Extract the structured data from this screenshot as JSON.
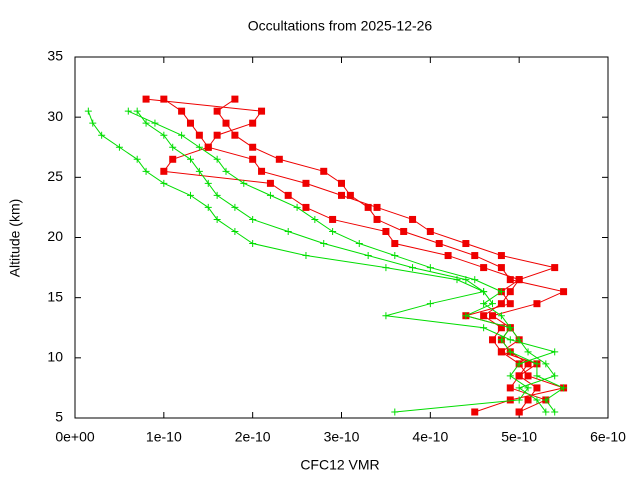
{
  "chart_data": {
    "type": "line",
    "title": "Occultations from 2025-12-26",
    "xlabel": "CFC12 VMR",
    "ylabel": "Altitude (km)",
    "xlim": [
      0,
      6e-10
    ],
    "ylim": [
      5,
      35
    ],
    "xticks": [
      {
        "value": 0,
        "label": "0e+00"
      },
      {
        "value": 1e-10,
        "label": "1e-10"
      },
      {
        "value": 2e-10,
        "label": "2e-10"
      },
      {
        "value": 3e-10,
        "label": "3e-10"
      },
      {
        "value": 4e-10,
        "label": "4e-10"
      },
      {
        "value": 5e-10,
        "label": "5e-10"
      },
      {
        "value": 6e-10,
        "label": "6e-10"
      }
    ],
    "yticks": [
      5,
      10,
      15,
      20,
      25,
      30,
      35
    ],
    "series": [
      {
        "color": "#ee0000",
        "marker": "square",
        "x": [
          5e-10,
          5.1e-10,
          5.2e-10,
          5e-10,
          5.1e-10,
          4.9e-10,
          4.8e-10,
          4.9e-10,
          4.7e-10,
          5.2e-10,
          5.5e-10,
          4.9e-10,
          4.8e-10,
          4.5e-10,
          4.1e-10,
          3.7e-10,
          3.4e-10,
          3.3e-10,
          3.1e-10,
          3e-10,
          2.8e-10,
          2.3e-10,
          2e-10,
          1.8e-10,
          1.7e-10,
          1.6e-10,
          1.8e-10
        ],
        "y": [
          5.5,
          6.5,
          7.5,
          8.5,
          9.5,
          10.5,
          11.5,
          12.5,
          13.5,
          14.5,
          15.5,
          16.5,
          17.5,
          18.5,
          19.5,
          20.5,
          21.5,
          22.5,
          23.5,
          24.5,
          25.5,
          26.5,
          27.5,
          28.5,
          29.5,
          30.5,
          31.5
        ]
      },
      {
        "color": "#ee0000",
        "marker": "square",
        "x": [
          4.5e-10,
          4.9e-10,
          5.5e-10,
          5.1e-10,
          5e-10,
          4.8e-10,
          4.7e-10,
          4.8e-10,
          4.6e-10,
          4.8e-10,
          4.9e-10,
          5e-10,
          5.4e-10,
          4.8e-10,
          4.4e-10,
          4e-10,
          3.8e-10,
          3.4e-10,
          3e-10,
          2.6e-10,
          2.1e-10,
          2e-10,
          1.5e-10,
          1.4e-10,
          1.3e-10,
          1.2e-10,
          1e-10
        ],
        "y": [
          5.5,
          6.5,
          7.5,
          8.5,
          9.5,
          10.5,
          11.5,
          12.5,
          13.5,
          14.5,
          15.5,
          16.5,
          17.5,
          18.5,
          19.5,
          20.5,
          21.5,
          22.5,
          23.5,
          24.5,
          25.5,
          26.5,
          27.5,
          28.5,
          29.5,
          30.5,
          31.5
        ]
      },
      {
        "color": "#ee0000",
        "marker": "square",
        "x": [
          5e-10,
          5.3e-10,
          4.9e-10,
          5e-10,
          5.2e-10,
          4.8e-10,
          5e-10,
          4.9e-10,
          4.4e-10,
          4.9e-10,
          4.8e-10,
          5e-10,
          4.6e-10,
          4.2e-10,
          3.6e-10,
          3.5e-10,
          2.9e-10,
          2.6e-10,
          2.4e-10,
          2.2e-10,
          1e-10,
          1.1e-10,
          1.5e-10,
          1.6e-10,
          2e-10,
          2.1e-10,
          8e-11
        ],
        "y": [
          5.5,
          6.5,
          7.5,
          8.5,
          9.5,
          10.5,
          11.5,
          12.5,
          13.5,
          14.5,
          15.5,
          16.5,
          17.5,
          18.5,
          19.5,
          20.5,
          21.5,
          22.5,
          23.5,
          24.5,
          25.5,
          26.5,
          27.5,
          28.5,
          29.5,
          30.5,
          31.5
        ]
      },
      {
        "color": "#00dd00",
        "marker": "plus",
        "x": [
          3.6e-10,
          5e-10,
          5.1e-10,
          4.9e-10,
          5e-10,
          5.4e-10,
          4.9e-10,
          4.6e-10,
          3.5e-10,
          4e-10,
          4.6e-10,
          4.3e-10,
          3.5e-10,
          2.6e-10,
          2e-10,
          1.8e-10,
          1.6e-10,
          1.5e-10,
          1.3e-10,
          1e-10,
          8e-11,
          7e-11,
          5e-11,
          3e-11,
          2e-11,
          1.5e-11
        ],
        "y": [
          5.5,
          6.5,
          7.5,
          8.5,
          9.5,
          10.5,
          11.5,
          12.5,
          13.5,
          14.5,
          15.5,
          16.5,
          17.5,
          18.5,
          19.5,
          20.5,
          21.5,
          22.5,
          23.5,
          24.5,
          25.5,
          26.5,
          27.5,
          28.5,
          29.5,
          30.5
        ]
      },
      {
        "color": "#00dd00",
        "marker": "plus",
        "x": [
          5.3e-10,
          5.2e-10,
          5e-10,
          5.4e-10,
          5.3e-10,
          5.1e-10,
          5e-10,
          4.9e-10,
          4.8e-10,
          4.6e-10,
          4.8e-10,
          4.5e-10,
          4e-10,
          3.6e-10,
          3.2e-10,
          2.9e-10,
          2.7e-10,
          2.5e-10,
          2.2e-10,
          1.9e-10,
          1.7e-10,
          1.6e-10,
          1.4e-10,
          1.2e-10,
          9e-11,
          6e-11
        ],
        "y": [
          5.5,
          6.5,
          7.5,
          8.5,
          9.5,
          10.5,
          11.5,
          12.5,
          13.5,
          14.5,
          15.5,
          16.5,
          17.5,
          18.5,
          19.5,
          20.5,
          21.5,
          22.5,
          23.5,
          24.5,
          25.5,
          26.5,
          27.5,
          28.5,
          29.5,
          30.5
        ]
      },
      {
        "color": "#00dd00",
        "marker": "plus",
        "x": [
          5.4e-10,
          5.3e-10,
          5.5e-10,
          5.2e-10,
          5.2e-10,
          4.9e-10,
          4.8e-10,
          4.9e-10,
          4.4e-10,
          4.7e-10,
          4.6e-10,
          4.4e-10,
          3.8e-10,
          3.3e-10,
          2.8e-10,
          2.4e-10,
          2e-10,
          1.8e-10,
          1.6e-10,
          1.5e-10,
          1.4e-10,
          1.3e-10,
          1.1e-10,
          1e-10,
          8e-11,
          7e-11
        ],
        "y": [
          5.5,
          6.5,
          7.5,
          8.5,
          9.5,
          10.5,
          11.5,
          12.5,
          13.5,
          14.5,
          15.5,
          16.5,
          17.5,
          18.5,
          19.5,
          20.5,
          21.5,
          22.5,
          23.5,
          24.5,
          25.5,
          26.5,
          27.5,
          28.5,
          29.5,
          30.5
        ]
      }
    ]
  }
}
